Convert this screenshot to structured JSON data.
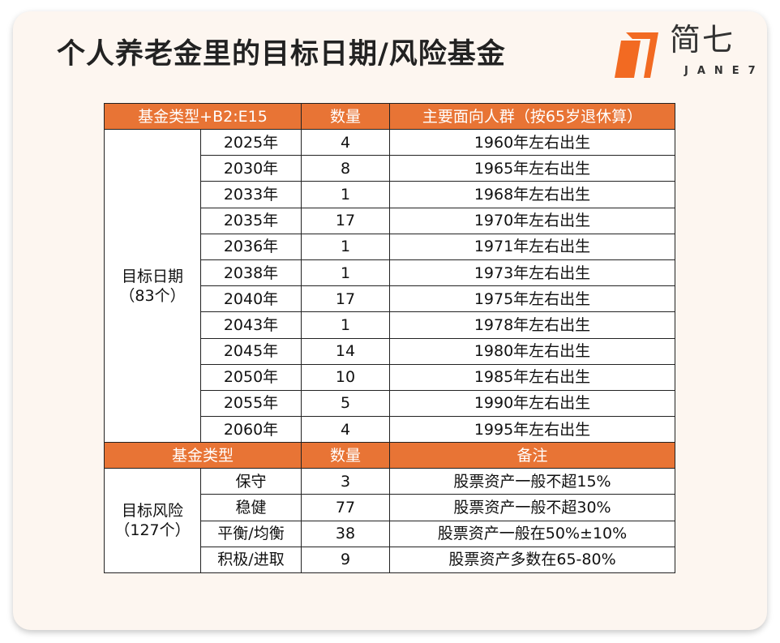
{
  "title": "个人养老金里的目标日期/风险基金",
  "logo": {
    "cn": "简七",
    "en": "JANE7",
    "color": "#f26a22"
  },
  "header_color": "#e87435",
  "table1": {
    "headers": [
      "基金类型+B2:E15",
      "数量",
      "主要面向人群（按65岁退休算）"
    ],
    "group": "目标日期",
    "group_count": "（83个）",
    "rows": [
      [
        "2025年",
        "4",
        "1960年左右出生"
      ],
      [
        "2030年",
        "8",
        "1965年左右出生"
      ],
      [
        "2033年",
        "1",
        "1968年左右出生"
      ],
      [
        "2035年",
        "17",
        "1970年左右出生"
      ],
      [
        "2036年",
        "1",
        "1971年左右出生"
      ],
      [
        "2038年",
        "1",
        "1973年左右出生"
      ],
      [
        "2040年",
        "17",
        "1975年左右出生"
      ],
      [
        "2043年",
        "1",
        "1978年左右出生"
      ],
      [
        "2045年",
        "14",
        "1980年左右出生"
      ],
      [
        "2050年",
        "10",
        "1985年左右出生"
      ],
      [
        "2055年",
        "5",
        "1990年左右出生"
      ],
      [
        "2060年",
        "4",
        "1995年左右出生"
      ]
    ]
  },
  "table2": {
    "headers": [
      "基金类型",
      "数量",
      "备注"
    ],
    "group": "目标风险",
    "group_count": "（127个）",
    "rows": [
      [
        "保守",
        "3",
        "股票资产一般不超15%"
      ],
      [
        "稳健",
        "77",
        "股票资产一般不超30%"
      ],
      [
        "平衡/均衡",
        "38",
        "股票资产一般在50%±10%"
      ],
      [
        "积极/进取",
        "9",
        "股票资产多数在65-80%"
      ]
    ]
  }
}
